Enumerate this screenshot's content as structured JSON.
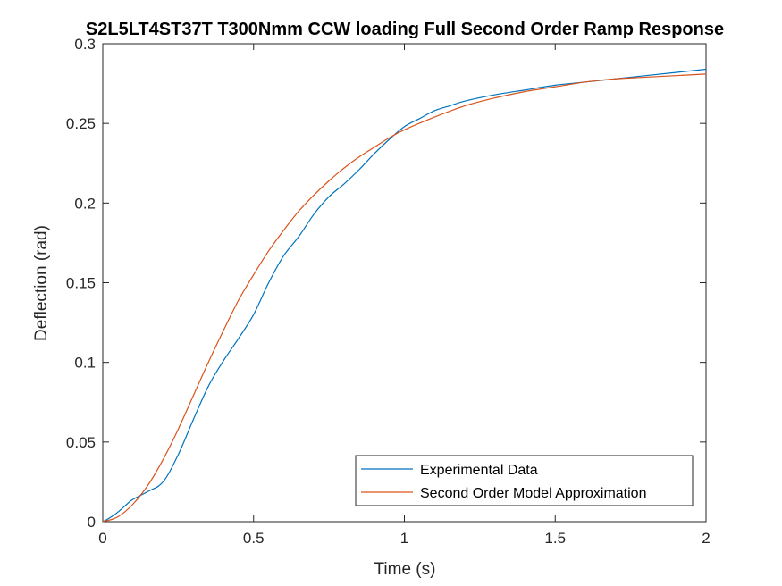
{
  "chart_data": {
    "type": "line",
    "title": "S2L5LT4ST37T T300Nmm CCW loading Full Second Order Ramp Response",
    "xlabel": "Time (s)",
    "ylabel": "Deflection (rad)",
    "xlim": [
      0,
      2
    ],
    "ylim": [
      0,
      0.3
    ],
    "xticks": [
      0,
      0.5,
      1,
      1.5,
      2
    ],
    "xtick_labels": [
      "0",
      "0.5",
      "1",
      "1.5",
      "2"
    ],
    "yticks": [
      0,
      0.05,
      0.1,
      0.15,
      0.2,
      0.25,
      0.3
    ],
    "ytick_labels": [
      "0",
      "0.05",
      "0.1",
      "0.15",
      "0.2",
      "0.25",
      "0.3"
    ],
    "grid": false,
    "legend": {
      "placement": "bottom-right"
    },
    "series": [
      {
        "name": "Experimental Data",
        "color": "#0072BD",
        "x": [
          0,
          0.02,
          0.05,
          0.08,
          0.1,
          0.15,
          0.2,
          0.25,
          0.3,
          0.35,
          0.4,
          0.45,
          0.5,
          0.55,
          0.6,
          0.65,
          0.7,
          0.75,
          0.8,
          0.85,
          0.9,
          0.95,
          1.0,
          1.05,
          1.1,
          1.15,
          1.2,
          1.3,
          1.4,
          1.5,
          1.6,
          1.7,
          1.8,
          1.9,
          2.0
        ],
        "y": [
          0,
          0.002,
          0.006,
          0.011,
          0.014,
          0.019,
          0.025,
          0.042,
          0.064,
          0.085,
          0.101,
          0.115,
          0.13,
          0.15,
          0.167,
          0.179,
          0.193,
          0.204,
          0.212,
          0.221,
          0.231,
          0.24,
          0.248,
          0.253,
          0.258,
          0.261,
          0.264,
          0.268,
          0.271,
          0.274,
          0.276,
          0.278,
          0.28,
          0.282,
          0.284
        ]
      },
      {
        "name": "Second Order Model Approximation",
        "color": "#D95319",
        "x": [
          0,
          0.05,
          0.1,
          0.15,
          0.2,
          0.25,
          0.3,
          0.35,
          0.4,
          0.45,
          0.5,
          0.55,
          0.6,
          0.65,
          0.7,
          0.75,
          0.8,
          0.85,
          0.9,
          0.95,
          1.0,
          1.1,
          1.2,
          1.3,
          1.4,
          1.5,
          1.6,
          1.7,
          1.8,
          1.9,
          2.0
        ],
        "y": [
          0,
          0.003,
          0.011,
          0.023,
          0.039,
          0.058,
          0.079,
          0.1,
          0.12,
          0.139,
          0.155,
          0.17,
          0.183,
          0.195,
          0.205,
          0.214,
          0.222,
          0.229,
          0.235,
          0.241,
          0.246,
          0.254,
          0.261,
          0.266,
          0.27,
          0.273,
          0.276,
          0.278,
          0.279,
          0.28,
          0.281
        ]
      }
    ]
  }
}
